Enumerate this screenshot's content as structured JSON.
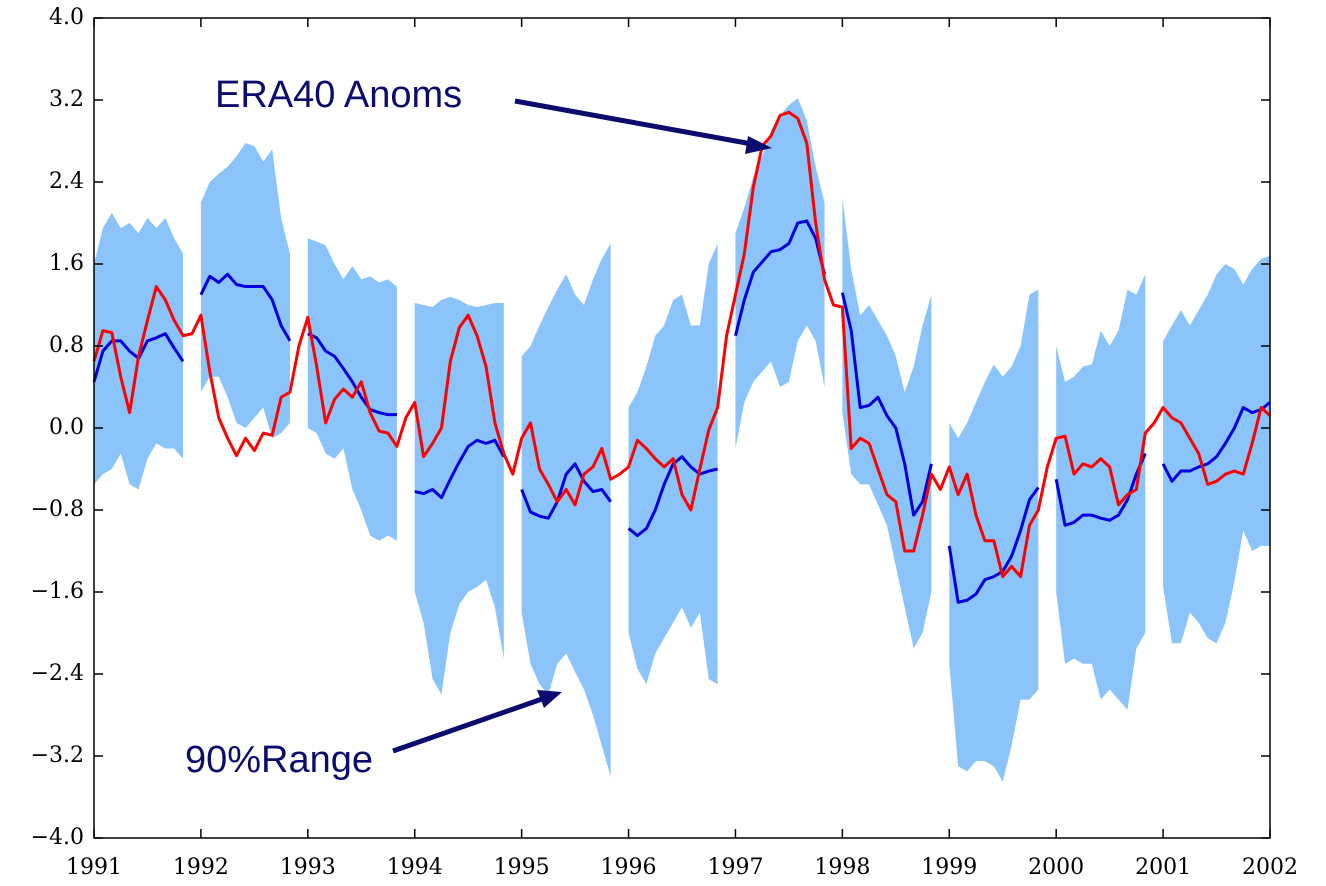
{
  "chart_data": {
    "type": "line",
    "xlim": [
      1991,
      2002
    ],
    "xticks": [
      1991,
      1992,
      1993,
      1994,
      1995,
      1996,
      1997,
      1998,
      1999,
      2000,
      2001,
      2002
    ],
    "ylim": [
      -4,
      4
    ],
    "yticks": [
      {
        "value": 4,
        "label": "4.0"
      },
      {
        "value": 3.2,
        "label": "3.2"
      },
      {
        "value": 2.4,
        "label": "2.4"
      },
      {
        "value": 1.6,
        "label": "1.6"
      },
      {
        "value": 0.8,
        "label": "0.8"
      },
      {
        "value": 0,
        "label": "0.0"
      },
      {
        "value": -0.8,
        "label": "−0.8"
      },
      {
        "value": -1.6,
        "label": "−1.6"
      },
      {
        "value": -2.4,
        "label": "−2.4"
      },
      {
        "value": -3.2,
        "label": "−3.2"
      },
      {
        "value": -4,
        "label": "−4.0"
      }
    ],
    "x": [
      1991,
      1991.083,
      1991.167,
      1991.25,
      1991.333,
      1991.417,
      1991.5,
      1991.583,
      1991.667,
      1991.75,
      1991.833,
      1991.917,
      1992,
      1992.083,
      1992.167,
      1992.25,
      1992.333,
      1992.417,
      1992.5,
      1992.583,
      1992.667,
      1992.75,
      1992.833,
      1992.917,
      1993,
      1993.083,
      1993.167,
      1993.25,
      1993.333,
      1993.417,
      1993.5,
      1993.583,
      1993.667,
      1993.75,
      1993.833,
      1993.917,
      1994,
      1994.083,
      1994.167,
      1994.25,
      1994.333,
      1994.417,
      1994.5,
      1994.583,
      1994.667,
      1994.75,
      1994.833,
      1994.917,
      1995,
      1995.083,
      1995.167,
      1995.25,
      1995.333,
      1995.417,
      1995.5,
      1995.583,
      1995.667,
      1995.75,
      1995.833,
      1995.917,
      1996,
      1996.083,
      1996.167,
      1996.25,
      1996.333,
      1996.417,
      1996.5,
      1996.583,
      1996.667,
      1996.75,
      1996.833,
      1996.917,
      1997,
      1997.083,
      1997.167,
      1997.25,
      1997.333,
      1997.417,
      1997.5,
      1997.583,
      1997.667,
      1997.75,
      1997.833,
      1997.917,
      1998,
      1998.083,
      1998.167,
      1998.25,
      1998.333,
      1998.417,
      1998.5,
      1998.583,
      1998.667,
      1998.75,
      1998.833,
      1998.917,
      1999,
      1999.083,
      1999.167,
      1999.25,
      1999.333,
      1999.417,
      1999.5,
      1999.583,
      1999.667,
      1999.75,
      1999.833,
      1999.917,
      2000,
      2000.083,
      2000.167,
      2000.25,
      2000.333,
      2000.417,
      2000.5,
      2000.583,
      2000.667,
      2000.75,
      2000.833,
      2000.917,
      2001,
      2001.083,
      2001.167,
      2001.25,
      2001.333,
      2001.417,
      2001.5,
      2001.583,
      2001.667,
      2001.75,
      2001.833,
      2001.917,
      2002
    ],
    "band": {
      "color": "#8ac4fa",
      "upper": [
        1.6,
        1.95,
        2.1,
        1.95,
        2.0,
        1.9,
        2.05,
        1.95,
        2.05,
        1.85,
        1.7,
        null,
        2.2,
        2.4,
        2.48,
        2.55,
        2.65,
        2.78,
        2.75,
        2.6,
        2.72,
        2.05,
        1.7,
        null,
        1.85,
        1.82,
        1.78,
        1.6,
        1.45,
        1.58,
        1.45,
        1.48,
        1.42,
        1.45,
        1.38,
        null,
        1.22,
        1.2,
        1.18,
        1.25,
        1.28,
        1.25,
        1.2,
        1.18,
        1.2,
        1.22,
        1.22,
        null,
        0.7,
        0.8,
        1.0,
        1.18,
        1.35,
        1.5,
        1.3,
        1.2,
        1.45,
        1.65,
        1.8,
        null,
        0.2,
        0.35,
        0.6,
        0.9,
        1.0,
        1.25,
        1.3,
        1.0,
        1.0,
        1.6,
        1.8,
        null,
        1.9,
        2.15,
        2.45,
        2.65,
        2.9,
        3.05,
        3.15,
        3.22,
        3.0,
        2.55,
        2.2,
        null,
        2.25,
        1.55,
        1.1,
        1.2,
        1.05,
        0.9,
        0.7,
        0.35,
        0.6,
        1.0,
        1.3,
        null,
        0.05,
        -0.1,
        0.05,
        0.25,
        0.45,
        0.62,
        0.5,
        0.6,
        0.8,
        1.3,
        1.35,
        null,
        0.8,
        0.45,
        0.5,
        0.6,
        0.62,
        0.95,
        0.8,
        0.95,
        1.35,
        1.3,
        1.5,
        null,
        0.85,
        1.0,
        1.15,
        1.0,
        1.15,
        1.3,
        1.5,
        1.6,
        1.55,
        1.4,
        1.55,
        1.65,
        1.68
      ],
      "lower": [
        -0.55,
        -0.45,
        -0.4,
        -0.25,
        -0.55,
        -0.6,
        -0.3,
        -0.15,
        -0.2,
        -0.2,
        -0.3,
        null,
        0.35,
        0.5,
        0.5,
        0.3,
        0.05,
        0.0,
        0.1,
        0.2,
        -0.1,
        -0.05,
        0.05,
        null,
        0.0,
        -0.05,
        -0.25,
        -0.3,
        -0.2,
        -0.6,
        -0.8,
        -1.05,
        -1.1,
        -1.05,
        -1.1,
        null,
        -1.6,
        -1.9,
        -2.45,
        -2.6,
        -2.0,
        -1.72,
        -1.6,
        -1.55,
        -1.48,
        -1.75,
        -2.25,
        null,
        -1.8,
        -2.3,
        -2.5,
        -2.6,
        -2.3,
        -2.2,
        -2.38,
        -2.55,
        -2.8,
        -3.1,
        -3.4,
        null,
        -2.0,
        -2.35,
        -2.5,
        -2.2,
        -2.05,
        -1.9,
        -1.75,
        -1.95,
        -1.8,
        -2.45,
        -2.5,
        null,
        -0.2,
        0.25,
        0.45,
        0.55,
        0.65,
        0.4,
        0.45,
        0.85,
        1.0,
        0.85,
        0.4,
        null,
        0.15,
        -0.45,
        -0.55,
        -0.55,
        -0.75,
        -0.95,
        -1.35,
        -1.75,
        -2.15,
        -2.0,
        -1.6,
        null,
        -2.3,
        -3.3,
        -3.35,
        -3.25,
        -3.25,
        -3.3,
        -3.45,
        -3.1,
        -2.65,
        -2.65,
        -2.55,
        null,
        -1.6,
        -2.3,
        -2.25,
        -2.3,
        -2.3,
        -2.65,
        -2.55,
        -2.65,
        -2.75,
        -2.15,
        -2.0,
        null,
        -1.55,
        -2.1,
        -2.1,
        -1.8,
        -1.9,
        -2.05,
        -2.1,
        -1.9,
        -1.5,
        -1.0,
        -1.2,
        -1.15,
        -1.15
      ]
    },
    "series": [
      {
        "color": "#0000dd",
        "values": [
          0.45,
          0.75,
          0.85,
          0.85,
          0.75,
          0.68,
          0.85,
          0.88,
          0.92,
          0.78,
          0.65,
          null,
          1.3,
          1.48,
          1.42,
          1.5,
          1.4,
          1.38,
          1.38,
          1.38,
          1.25,
          1.0,
          0.85,
          null,
          0.92,
          0.88,
          0.75,
          0.7,
          0.58,
          0.45,
          0.3,
          0.18,
          0.15,
          0.13,
          0.13,
          null,
          -0.62,
          -0.64,
          -0.6,
          -0.68,
          -0.5,
          -0.33,
          -0.18,
          -0.12,
          -0.15,
          -0.12,
          -0.28,
          null,
          -0.6,
          -0.82,
          -0.86,
          -0.88,
          -0.72,
          -0.45,
          -0.35,
          -0.52,
          -0.62,
          -0.6,
          -0.72,
          null,
          -0.98,
          -1.05,
          -0.98,
          -0.8,
          -0.55,
          -0.35,
          -0.28,
          -0.38,
          -0.45,
          -0.42,
          -0.4,
          null,
          0.9,
          1.25,
          1.52,
          1.62,
          1.72,
          1.74,
          1.8,
          2.0,
          2.02,
          1.85,
          1.5,
          null,
          1.32,
          0.95,
          0.2,
          0.22,
          0.3,
          0.12,
          0.0,
          -0.35,
          -0.85,
          -0.72,
          -0.35,
          null,
          -1.15,
          -1.7,
          -1.68,
          -1.62,
          -1.48,
          -1.45,
          -1.4,
          -1.25,
          -1.0,
          -0.7,
          -0.58,
          null,
          -0.5,
          -0.95,
          -0.92,
          -0.85,
          -0.85,
          -0.88,
          -0.9,
          -0.85,
          -0.7,
          -0.45,
          -0.25,
          null,
          -0.35,
          -0.52,
          -0.42,
          -0.42,
          -0.38,
          -0.35,
          -0.28,
          -0.15,
          0.0,
          0.2,
          0.15,
          0.18,
          0.25
        ]
      },
      {
        "color": "#ff0000",
        "values": [
          0.65,
          0.95,
          0.93,
          0.5,
          0.15,
          0.7,
          1.05,
          1.38,
          1.25,
          1.05,
          0.9,
          0.92,
          1.1,
          0.55,
          0.1,
          -0.1,
          -0.27,
          -0.1,
          -0.22,
          -0.05,
          -0.07,
          0.3,
          0.35,
          0.8,
          1.08,
          0.6,
          0.05,
          0.28,
          0.38,
          0.3,
          0.45,
          0.15,
          -0.03,
          -0.05,
          -0.18,
          0.1,
          0.25,
          -0.28,
          -0.15,
          0.0,
          0.65,
          0.98,
          1.1,
          0.9,
          0.6,
          0.05,
          -0.25,
          -0.45,
          -0.1,
          0.05,
          -0.4,
          -0.55,
          -0.72,
          -0.6,
          -0.75,
          -0.45,
          -0.38,
          -0.2,
          -0.5,
          -0.45,
          -0.38,
          -0.12,
          -0.2,
          -0.3,
          -0.38,
          -0.3,
          -0.65,
          -0.8,
          -0.4,
          -0.02,
          0.2,
          0.9,
          1.3,
          1.7,
          2.35,
          2.75,
          2.85,
          3.05,
          3.08,
          3.02,
          2.78,
          2.0,
          1.45,
          1.2,
          1.18,
          -0.2,
          -0.1,
          -0.15,
          -0.4,
          -0.65,
          -0.72,
          -1.2,
          -1.2,
          -0.85,
          -0.45,
          -0.6,
          -0.38,
          -0.65,
          -0.45,
          -0.85,
          -1.1,
          -1.1,
          -1.45,
          -1.35,
          -1.45,
          -0.95,
          -0.8,
          -0.38,
          -0.1,
          -0.08,
          -0.45,
          -0.35,
          -0.38,
          -0.3,
          -0.38,
          -0.75,
          -0.65,
          -0.6,
          -0.05,
          0.05,
          0.2,
          0.1,
          0.05,
          -0.1,
          -0.25,
          -0.55,
          -0.52,
          -0.45,
          -0.42,
          -0.45,
          -0.15,
          0.2,
          0.12
        ]
      }
    ],
    "annotation_color": "#0c0c6e",
    "annotations": [
      {
        "text": "ERA40 Anoms"
      },
      {
        "text": "90%Range"
      }
    ]
  }
}
